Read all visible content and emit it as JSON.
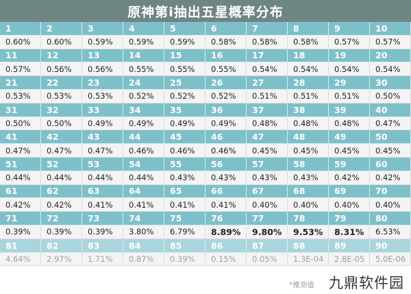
{
  "title": "原神第i抽出五星概率分布",
  "rows": [
    {
      "pulls": [
        "1",
        "2",
        "3",
        "4",
        "5",
        "6",
        "7",
        "8",
        "9",
        "10"
      ],
      "rates": [
        "0.60%",
        "0.60%",
        "0.59%",
        "0.59%",
        "0.59%",
        "0.58%",
        "0.58%",
        "0.58%",
        "0.57%",
        "0.57%"
      ]
    },
    {
      "pulls": [
        "11",
        "12",
        "13",
        "14",
        "15",
        "16",
        "17",
        "18",
        "19",
        "20"
      ],
      "rates": [
        "0.57%",
        "0.56%",
        "0.56%",
        "0.55%",
        "0.55%",
        "0.55%",
        "0.54%",
        "0.54%",
        "0.54%",
        "0.54%"
      ]
    },
    {
      "pulls": [
        "21",
        "22",
        "23",
        "24",
        "25",
        "26",
        "27",
        "28",
        "29",
        "30"
      ],
      "rates": [
        "0.53%",
        "0.53%",
        "0.53%",
        "0.52%",
        "0.52%",
        "0.52%",
        "0.51%",
        "0.51%",
        "0.51%",
        "0.50%"
      ]
    },
    {
      "pulls": [
        "31",
        "32",
        "33",
        "34",
        "35",
        "36",
        "37",
        "38",
        "39",
        "40"
      ],
      "rates": [
        "0.50%",
        "0.50%",
        "0.49%",
        "0.49%",
        "0.49%",
        "0.49%",
        "0.48%",
        "0.48%",
        "0.48%",
        "0.47%"
      ]
    },
    {
      "pulls": [
        "41",
        "42",
        "43",
        "44",
        "45",
        "46",
        "47",
        "48",
        "49",
        "50"
      ],
      "rates": [
        "0.47%",
        "0.47%",
        "0.47%",
        "0.46%",
        "0.46%",
        "0.46%",
        "0.45%",
        "0.45%",
        "0.45%",
        "0.45%"
      ]
    },
    {
      "pulls": [
        "51",
        "52",
        "53",
        "54",
        "55",
        "56",
        "57",
        "58",
        "59",
        "60"
      ],
      "rates": [
        "0.44%",
        "0.44%",
        "0.44%",
        "0.44%",
        "0.43%",
        "0.43%",
        "0.43%",
        "0.43%",
        "0.42%",
        "0.42%"
      ]
    },
    {
      "pulls": [
        "61",
        "62",
        "63",
        "64",
        "65",
        "66",
        "67",
        "68",
        "69",
        "70"
      ],
      "rates": [
        "0.42%",
        "0.42%",
        "0.41%",
        "0.41%",
        "0.41%",
        "0.41%",
        "0.40%",
        "0.40%",
        "0.40%",
        "0.40%"
      ]
    },
    {
      "pulls": [
        "71",
        "72",
        "73",
        "74",
        "75",
        "76",
        "77",
        "78",
        "79",
        "80"
      ],
      "rates": [
        "0.39%",
        "0.39%",
        "0.39%",
        "3.80%",
        "6.79%",
        "8.89%",
        "9.80%",
        "9.53%",
        "8.31%",
        "6.53%"
      ],
      "bold": [
        false,
        false,
        false,
        false,
        false,
        true,
        true,
        true,
        true,
        false
      ]
    },
    {
      "pulls": [
        "81",
        "82",
        "83",
        "84",
        "85",
        "86",
        "87",
        "88",
        "89",
        "90"
      ],
      "rates": [
        "4.64%",
        "2.97%",
        "1.71%",
        "0.87%",
        "0.39%",
        "0.15%",
        "0.05%",
        "1.3E-04",
        "2.8E-05",
        "5.0E-06"
      ],
      "faded": true
    }
  ],
  "footnote": "*推测值",
  "watermark": "九鼎软件园"
}
